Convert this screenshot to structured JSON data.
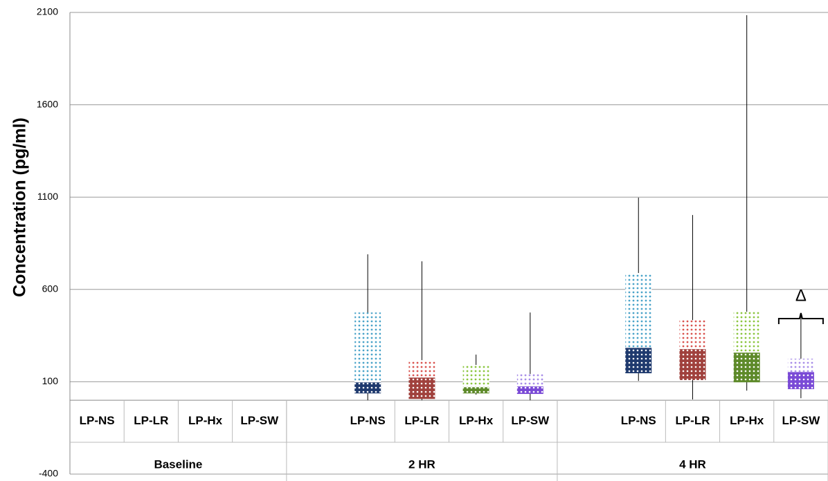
{
  "chart_data": {
    "type": "box",
    "y_label": "Concentration (pg/ml)",
    "ylim": [
      -400,
      2100
    ],
    "yticks": [
      -400,
      100,
      600,
      1100,
      1600,
      2100
    ],
    "grid": true,
    "categories": [
      "LP-NS",
      "LP-LR",
      "LP-Hx",
      "LP-SW",
      null,
      "LP-NS",
      "LP-LR",
      "LP-Hx",
      "LP-SW",
      null,
      "LP-NS",
      "LP-LR",
      "LP-Hx",
      "LP-SW"
    ],
    "groups": [
      "Baseline",
      "2 HR",
      "4 HR"
    ],
    "min": [
      null,
      null,
      null,
      null,
      null,
      0,
      0,
      30,
      0,
      null,
      105,
      4,
      52,
      11
    ],
    "q1": [
      null,
      null,
      null,
      null,
      null,
      37,
      7,
      37,
      34,
      null,
      146,
      109,
      97,
      60
    ],
    "median": [
      null,
      null,
      null,
      null,
      null,
      97,
      123,
      71,
      75,
      null,
      284,
      277,
      258,
      153
    ],
    "q3": [
      null,
      null,
      null,
      null,
      null,
      475,
      217,
      191,
      142,
      null,
      689,
      434,
      479,
      225
    ],
    "max": [
      null,
      null,
      null,
      null,
      null,
      790,
      752,
      247,
      475,
      null,
      1097,
      1003,
      2085,
      460
    ],
    "lower_colors": [
      null,
      null,
      null,
      null,
      null,
      "#1f3a6e",
      "#a0413d",
      "#5e8a2a",
      "#7a4ad6",
      null,
      "#1f3a6e",
      "#a0413d",
      "#5e8a2a",
      "#7a4ad6"
    ],
    "upper_colors": [
      null,
      null,
      null,
      null,
      null,
      "#4aa3c9",
      "#d9534f",
      "#8cc63f",
      "#a88ee8",
      null,
      "#4aa3c9",
      "#d9534f",
      "#8cc63f",
      "#a88ee8"
    ],
    "annotation": "Δ"
  }
}
